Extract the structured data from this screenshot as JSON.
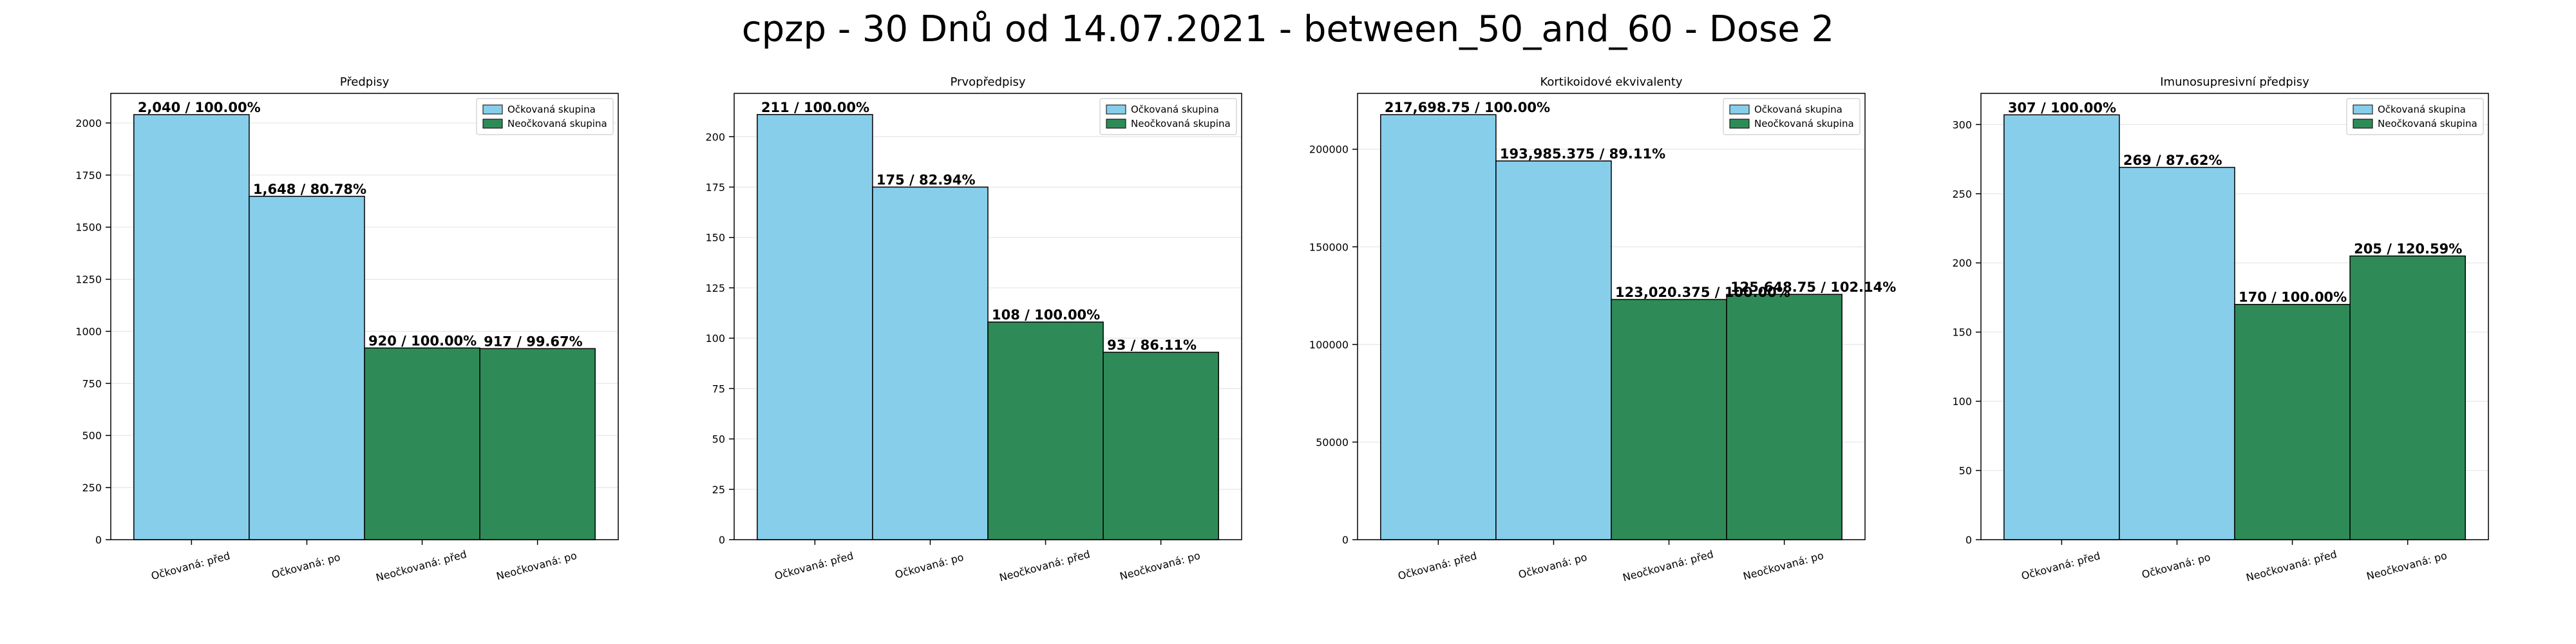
{
  "figure": {
    "suptitle": "cpzp - 30 Dnů od 14.07.2021 - between_50_and_60 - Dose 2"
  },
  "colors": {
    "vaccinated": "#87ceeb",
    "unvaccinated": "#2e8b57",
    "bar_edge": "#000000",
    "grid": "#e6e6e6"
  },
  "chart_data": [
    {
      "type": "bar",
      "title": "Předpisy",
      "categories": [
        "Očkovaná: před",
        "Očkovaná: po",
        "Neočkovaná: před",
        "Neočkovaná: po"
      ],
      "values": [
        2040,
        1648,
        920,
        917
      ],
      "bar_labels": [
        "2,040 / 100.00%",
        "1,648 / 80.78%",
        "920 / 100.00%",
        "917 / 99.67%"
      ],
      "bar_groups": [
        "vaccinated",
        "vaccinated",
        "unvaccinated",
        "unvaccinated"
      ],
      "ylim": [
        0,
        2142
      ],
      "yticks": [
        0,
        250,
        500,
        750,
        1000,
        1250,
        1500,
        1750,
        2000
      ],
      "ytick_labels": [
        "0",
        "250",
        "500",
        "750",
        "1000",
        "1250",
        "1500",
        "1750",
        "2000"
      ],
      "legend": [
        "Očkovaná skupina",
        "Neočkovaná skupina"
      ],
      "legend_position": "top-right",
      "grid": "y"
    },
    {
      "type": "bar",
      "title": "Prvopředpisy",
      "categories": [
        "Očkovaná: před",
        "Očkovaná: po",
        "Neočkovaná: před",
        "Neočkovaná: po"
      ],
      "values": [
        211,
        175,
        108,
        93
      ],
      "bar_labels": [
        "211 / 100.00%",
        "175 / 82.94%",
        "108 / 100.00%",
        "93 / 86.11%"
      ],
      "bar_groups": [
        "vaccinated",
        "vaccinated",
        "unvaccinated",
        "unvaccinated"
      ],
      "ylim": [
        0,
        221.5
      ],
      "yticks": [
        0,
        25,
        50,
        75,
        100,
        125,
        150,
        175,
        200
      ],
      "ytick_labels": [
        "0",
        "25",
        "50",
        "75",
        "100",
        "125",
        "150",
        "175",
        "200"
      ],
      "legend": [
        "Očkovaná skupina",
        "Neočkovaná skupina"
      ],
      "legend_position": "top-right",
      "grid": "y"
    },
    {
      "type": "bar",
      "title": "Kortikoidové ekvivalenty",
      "categories": [
        "Očkovaná: před",
        "Očkovaná: po",
        "Neočkovaná: před",
        "Neočkovaná: po"
      ],
      "values": [
        217698.75,
        193985.375,
        123020.375,
        125648.75
      ],
      "bar_labels": [
        "217,698.75 / 100.00%",
        "193,985.375 / 89.11%",
        "123,020.375 / 100.00%",
        "125,648.75 / 102.14%"
      ],
      "bar_groups": [
        "vaccinated",
        "vaccinated",
        "unvaccinated",
        "unvaccinated"
      ],
      "ylim": [
        0,
        228600
      ],
      "yticks": [
        0,
        50000,
        100000,
        150000,
        200000
      ],
      "ytick_labels": [
        "0",
        "50000",
        "100000",
        "150000",
        "200000"
      ],
      "legend": [
        "Očkovaná skupina",
        "Neočkovaná skupina"
      ],
      "legend_position": "top-right",
      "grid": "y"
    },
    {
      "type": "bar",
      "title": "Imunosupresivní předpisy",
      "categories": [
        "Očkovaná: před",
        "Očkovaná: po",
        "Neočkovaná: před",
        "Neočkovaná: po"
      ],
      "values": [
        307,
        269,
        170,
        205
      ],
      "bar_labels": [
        "307 / 100.00%",
        "269 / 87.62%",
        "170 / 100.00%",
        "205 / 120.59%"
      ],
      "bar_groups": [
        "vaccinated",
        "vaccinated",
        "unvaccinated",
        "unvaccinated"
      ],
      "ylim": [
        0,
        322.5
      ],
      "yticks": [
        0,
        50,
        100,
        150,
        200,
        250,
        300
      ],
      "ytick_labels": [
        "0",
        "50",
        "100",
        "150",
        "200",
        "250",
        "300"
      ],
      "legend": [
        "Očkovaná skupina",
        "Neočkovaná skupina"
      ],
      "legend_position": "top-right",
      "grid": "y"
    }
  ]
}
